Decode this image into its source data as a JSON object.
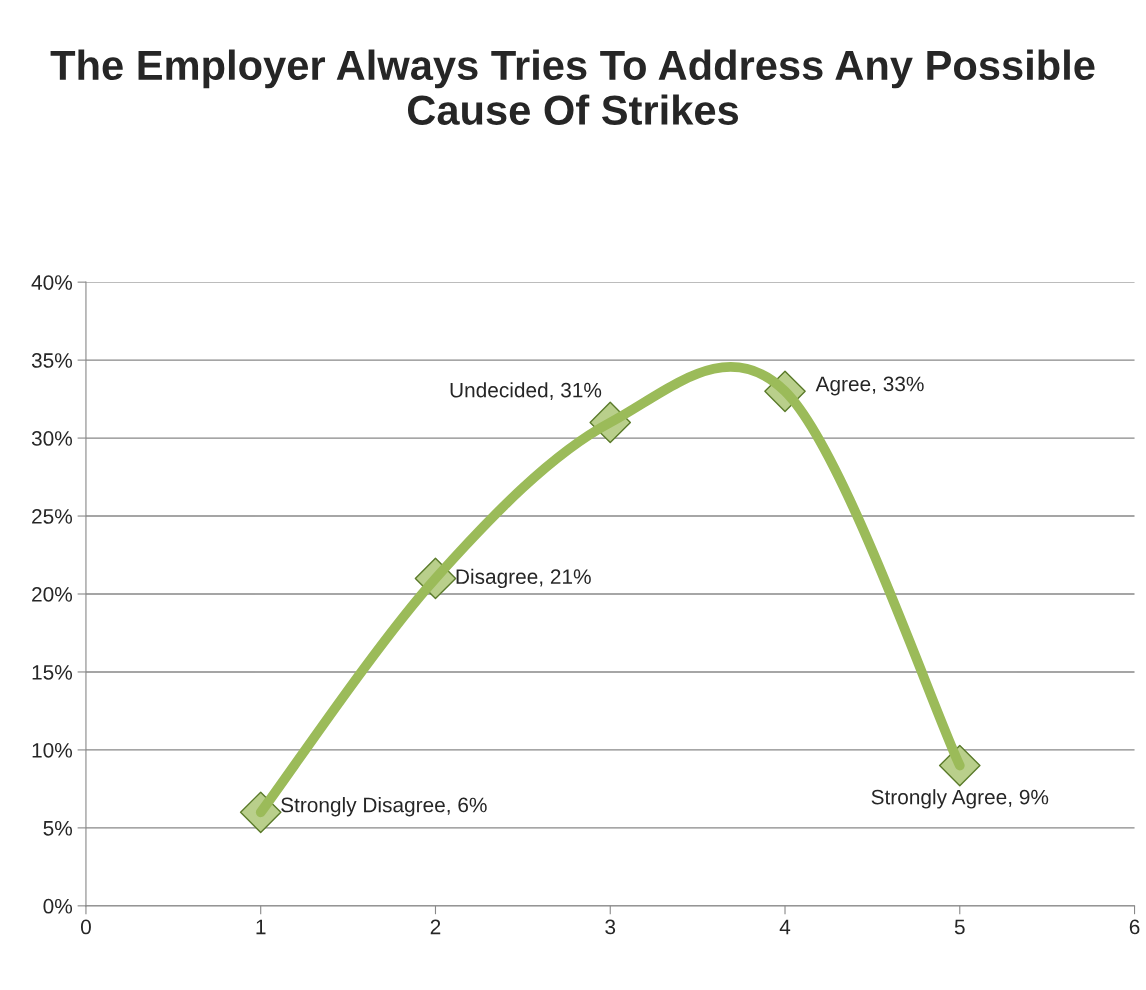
{
  "chart_data": {
    "type": "line",
    "title": "The Employer Always Tries To Address Any Possible Cause Of Strikes",
    "x": [
      1,
      2,
      3,
      4,
      5
    ],
    "series": [
      {
        "color": "#9bbb59",
        "values": [
          6,
          21,
          31,
          33,
          9
        ],
        "value_labels": [
          "Strongly Disagree, 6%",
          "Disagree, 21%",
          "Undecided, 31%",
          "Agree, 33%",
          "Strongly Agree, 9%"
        ]
      }
    ],
    "xlim": [
      0,
      6
    ],
    "xticks": [
      0,
      1,
      2,
      3,
      4,
      5,
      6
    ],
    "ylim": [
      0,
      40
    ],
    "yticks": [
      {
        "value": 0,
        "label": "0%"
      },
      {
        "value": 5,
        "label": "5%"
      },
      {
        "value": 10,
        "label": "10%"
      },
      {
        "value": 15,
        "label": "15%"
      },
      {
        "value": 20,
        "label": "20%"
      },
      {
        "value": 25,
        "label": "25%"
      },
      {
        "value": 30,
        "label": "30%"
      },
      {
        "value": 35,
        "label": "35%"
      },
      {
        "value": 40,
        "label": "40%"
      }
    ],
    "grid": "y",
    "marker": "diamond",
    "line_style": "solid",
    "legend": false
  }
}
